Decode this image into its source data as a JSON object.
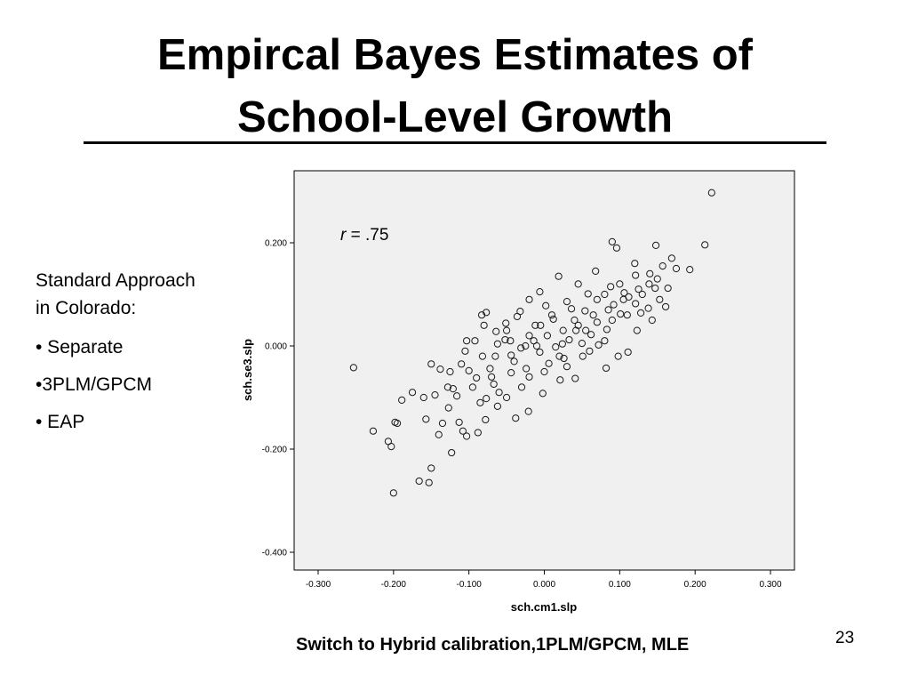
{
  "slide": {
    "title_line_1": "Empircal Bayes Estimates of",
    "title_line_2": "School-Level Growth",
    "side_notes": {
      "heading": "Standard Approach in Colorado:",
      "bullets": [
        "• Separate",
        "•3PLM/GPCM",
        "• EAP"
      ]
    },
    "footer_note": "Switch to Hybrid calibration,1PLM/GPCM, MLE",
    "slide_number": "23"
  },
  "chart_data": {
    "type": "scatter",
    "xlabel": "sch.cm1.slp",
    "ylabel": "sch.se3.slp",
    "xlim": [
      -0.3,
      0.3
    ],
    "ylim": [
      -0.4,
      0.3
    ],
    "xticks": [
      "-0.300",
      "-0.200",
      "-0.100",
      "0.000",
      "0.100",
      "0.200",
      "0.300"
    ],
    "yticks": [
      "0.200",
      "0.000",
      "-0.200",
      "-0.400"
    ],
    "annotation": {
      "italic": "r",
      "rest": " = .75"
    },
    "grid": false,
    "background": "#f0f0f0",
    "marker": "open-circle",
    "points": [
      [
        0.222,
        0.297
      ],
      [
        0.213,
        0.196
      ],
      [
        0.193,
        0.148
      ],
      [
        0.169,
        0.17
      ],
      [
        0.157,
        0.155
      ],
      [
        0.148,
        0.195
      ],
      [
        0.09,
        0.202
      ],
      [
        0.096,
        0.19
      ],
      [
        0.175,
        0.15
      ],
      [
        0.139,
        0.12
      ],
      [
        0.121,
        0.137
      ],
      [
        0.106,
        0.103
      ],
      [
        0.088,
        0.115
      ],
      [
        0.068,
        0.145
      ],
      [
        0.045,
        0.12
      ],
      [
        0.019,
        0.135
      ],
      [
        -0.006,
        0.105
      ],
      [
        -0.077,
        0.065
      ],
      [
        -0.083,
        0.06
      ],
      [
        -0.103,
        0.01
      ],
      [
        -0.128,
        -0.08
      ],
      [
        -0.138,
        -0.045
      ],
      [
        -0.15,
        -0.035
      ],
      [
        -0.16,
        -0.1
      ],
      [
        -0.175,
        -0.09
      ],
      [
        -0.189,
        -0.105
      ],
      [
        -0.195,
        -0.15
      ],
      [
        -0.198,
        -0.148
      ],
      [
        -0.227,
        -0.165
      ],
      [
        -0.203,
        -0.195
      ],
      [
        -0.207,
        -0.185
      ],
      [
        -0.253,
        -0.042
      ],
      [
        -0.2,
        -0.285
      ],
      [
        -0.166,
        -0.262
      ],
      [
        -0.153,
        -0.265
      ],
      [
        -0.15,
        -0.237
      ],
      [
        -0.123,
        -0.207
      ],
      [
        -0.088,
        -0.168
      ],
      [
        -0.103,
        -0.175
      ],
      [
        -0.108,
        -0.165
      ],
      [
        -0.14,
        -0.172
      ],
      [
        -0.135,
        -0.15
      ],
      [
        -0.157,
        -0.142
      ],
      [
        -0.127,
        -0.12
      ],
      [
        -0.113,
        -0.148
      ],
      [
        -0.078,
        -0.143
      ],
      [
        -0.062,
        -0.117
      ],
      [
        -0.077,
        -0.102
      ],
      [
        -0.116,
        -0.097
      ],
      [
        -0.121,
        -0.083
      ],
      [
        -0.1,
        -0.048
      ],
      [
        -0.09,
        -0.062
      ],
      [
        -0.067,
        -0.074
      ],
      [
        -0.038,
        -0.14
      ],
      [
        -0.021,
        -0.127
      ],
      [
        -0.002,
        -0.092
      ],
      [
        0.021,
        -0.066
      ],
      [
        0.041,
        -0.063
      ],
      [
        0.051,
        -0.02
      ],
      [
        0.082,
        -0.043
      ],
      [
        0.098,
        -0.02
      ],
      [
        0.111,
        -0.012
      ],
      [
        0.123,
        0.03
      ],
      [
        0.143,
        0.05
      ],
      [
        0.138,
        0.073
      ],
      [
        0.121,
        0.082
      ],
      [
        0.101,
        0.062
      ],
      [
        0.083,
        0.032
      ],
      [
        0.07,
        0.046
      ],
      [
        0.054,
        0.068
      ],
      [
        0.036,
        0.072
      ],
      [
        0.012,
        0.052
      ],
      [
        -0.012,
        0.04
      ],
      [
        -0.036,
        0.057
      ],
      [
        -0.051,
        0.044
      ],
      [
        -0.052,
        0.012
      ],
      [
        -0.062,
        0.004
      ],
      [
        -0.044,
        -0.018
      ],
      [
        -0.031,
        -0.004
      ],
      [
        -0.014,
        0.01
      ],
      [
        0.004,
        0.02
      ],
      [
        0.024,
        0.004
      ],
      [
        0.042,
        0.03
      ],
      [
        0.062,
        0.022
      ],
      [
        0.072,
        0.002
      ],
      [
        0.026,
        -0.024
      ],
      [
        0.006,
        -0.034
      ],
      [
        -0.024,
        -0.044
      ],
      [
        -0.044,
        -0.052
      ],
      [
        -0.072,
        -0.044
      ],
      [
        -0.082,
        -0.02
      ],
      [
        -0.092,
        0.01
      ],
      [
        -0.064,
        0.028
      ],
      [
        0.153,
        0.09
      ],
      [
        0.164,
        0.112
      ],
      [
        0.112,
        0.095
      ],
      [
        0.092,
        0.08
      ],
      [
        0.128,
        0.064
      ],
      [
        0.161,
        0.076
      ],
      [
        0.147,
        0.112
      ],
      [
        0.058,
        0.101
      ],
      [
        0.03,
        0.086
      ],
      [
        0.002,
        0.078
      ],
      [
        -0.02,
        0.09
      ],
      [
        -0.032,
        0.067
      ],
      [
        0.015,
        -0.002
      ],
      [
        -0.006,
        -0.012
      ],
      [
        0.033,
        0.012
      ],
      [
        0.05,
        0.005
      ],
      [
        -0.02,
        0.02
      ],
      [
        -0.04,
        -0.03
      ],
      [
        -0.07,
        -0.06
      ],
      [
        -0.095,
        -0.08
      ],
      [
        -0.11,
        -0.035
      ],
      [
        -0.06,
        -0.09
      ],
      [
        -0.03,
        -0.08
      ],
      [
        0.0,
        -0.05
      ],
      [
        0.03,
        -0.04
      ],
      [
        0.06,
        -0.01
      ],
      [
        0.08,
        0.01
      ],
      [
        0.09,
        0.05
      ],
      [
        0.11,
        0.06
      ],
      [
        0.13,
        0.1
      ],
      [
        0.15,
        0.13
      ],
      [
        0.1,
        0.12
      ],
      [
        0.07,
        0.09
      ],
      [
        0.04,
        0.05
      ],
      [
        0.01,
        0.06
      ],
      [
        -0.01,
        0.0
      ],
      [
        -0.05,
        0.03
      ],
      [
        -0.08,
        0.04
      ],
      [
        -0.105,
        -0.01
      ],
      [
        -0.125,
        -0.05
      ],
      [
        -0.145,
        -0.095
      ],
      [
        -0.085,
        -0.11
      ],
      [
        -0.05,
        -0.1
      ],
      [
        -0.02,
        -0.06
      ],
      [
        0.02,
        -0.02
      ],
      [
        0.045,
        0.04
      ],
      [
        0.065,
        0.06
      ],
      [
        0.085,
        0.07
      ],
      [
        0.105,
        0.09
      ],
      [
        0.125,
        0.11
      ],
      [
        0.14,
        0.14
      ],
      [
        0.12,
        0.16
      ],
      [
        0.08,
        0.1
      ],
      [
        0.055,
        0.03
      ],
      [
        0.025,
        0.03
      ],
      [
        -0.005,
        0.04
      ],
      [
        -0.025,
        0.0
      ],
      [
        -0.045,
        0.01
      ],
      [
        -0.065,
        -0.02
      ]
    ]
  }
}
